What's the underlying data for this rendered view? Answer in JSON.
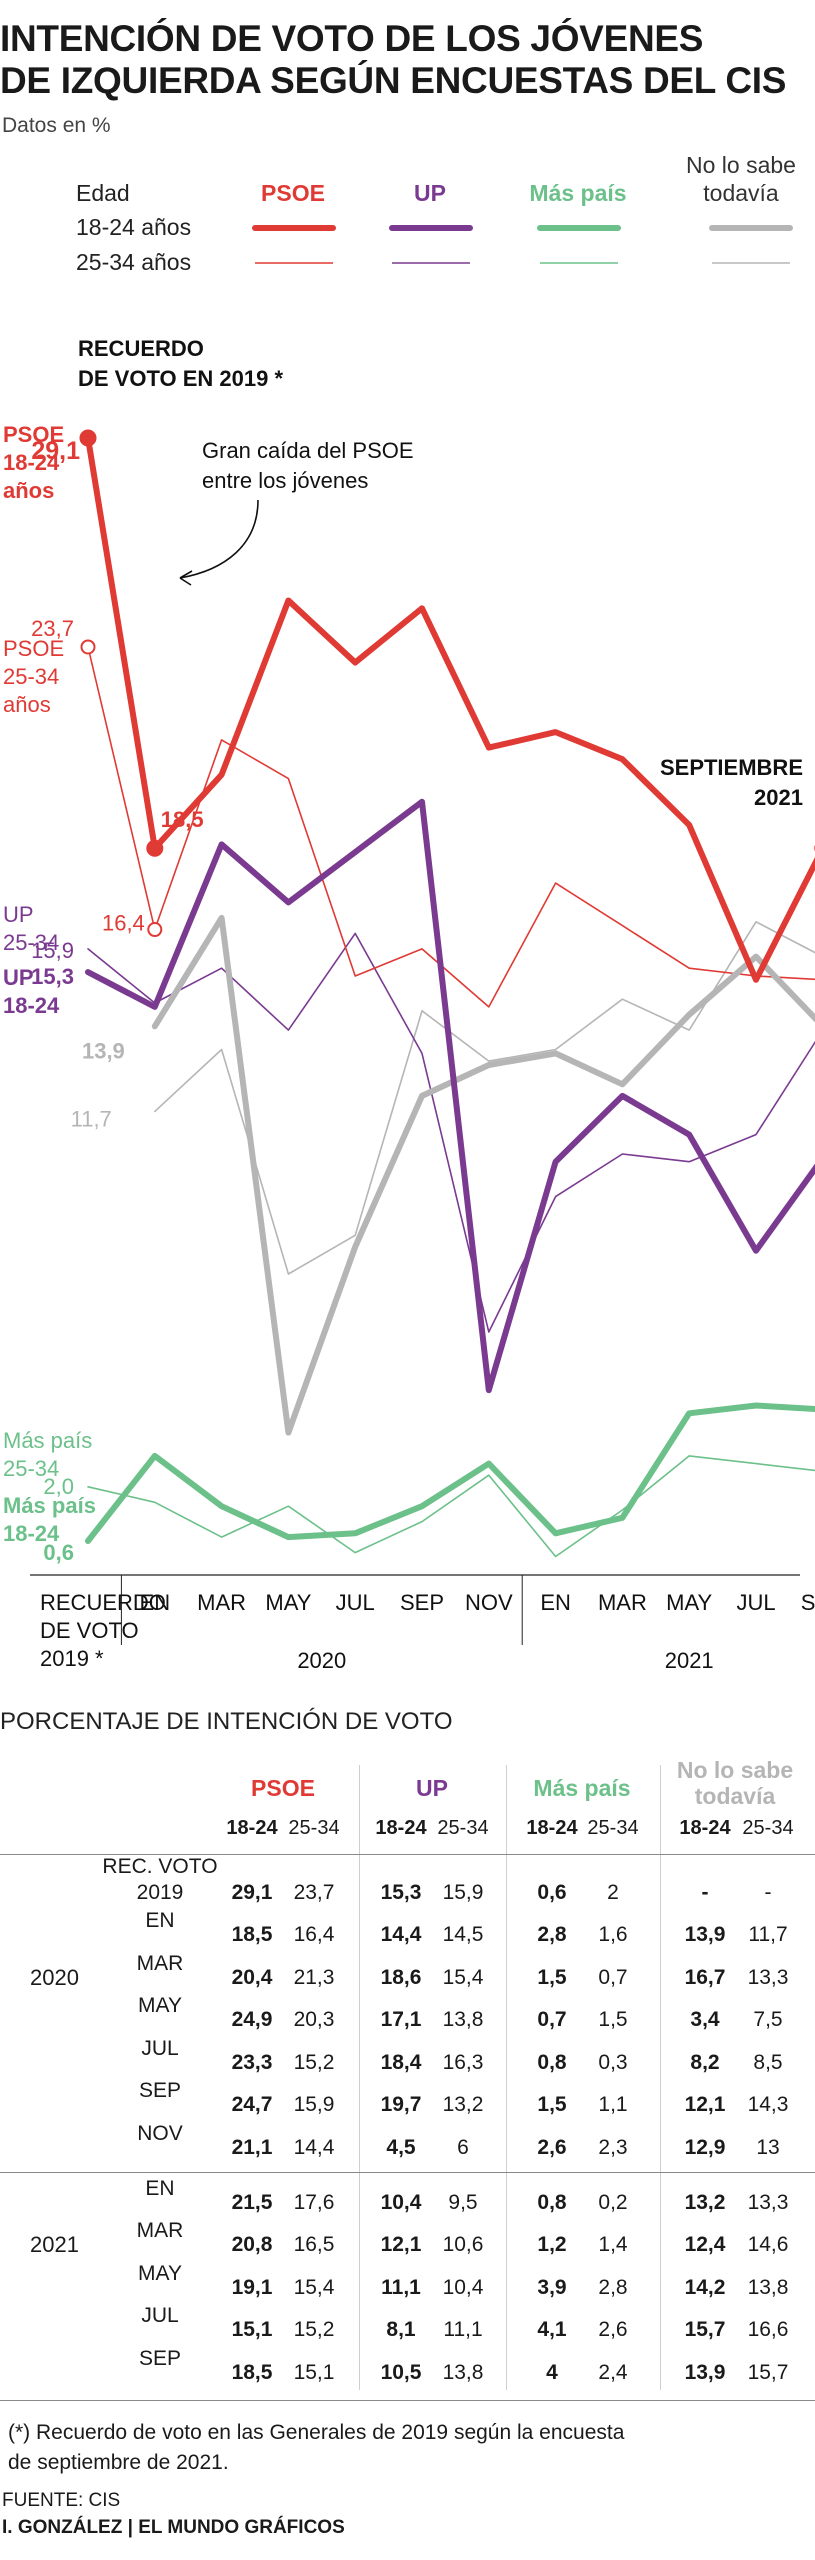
{
  "title_line1": "INTENCIÓN DE VOTO DE LOS JÓVENES",
  "title_line2": "DE IZQUIERDA SEGÚN ENCUESTAS DEL CIS",
  "units": "Datos en %",
  "colors": {
    "psoe": "#e03a34",
    "up": "#7a3a90",
    "maspais": "#6cc08a",
    "nosabe": "#b5b5b5"
  },
  "legend": {
    "age_header": "Edad",
    "row1": "18-24 años",
    "row2": "25-34 años",
    "psoe": "PSOE",
    "up": "UP",
    "maspais": "Más país",
    "nosabe_l1": "No lo sabe",
    "nosabe_l2": "todavía"
  },
  "annotations": {
    "recuerdo_l1": "RECUERDO",
    "recuerdo_l2": "DE VOTO EN 2019 *",
    "caida_l1": "Gran caída del PSOE",
    "caida_l2": "entre los jóvenes",
    "sept_l1": "SEPTIEMBRE",
    "sept_l2": "2021",
    "psoe1824": [
      "PSOE",
      "18-24",
      "años"
    ],
    "psoe2534": [
      "PSOE",
      "25-34",
      "años"
    ],
    "up2534": [
      "UP",
      "25-34"
    ],
    "up1824": [
      "UP",
      "18-24"
    ],
    "mp2534": [
      "Más país",
      "25-34"
    ],
    "mp1824": [
      "Más país",
      "18-24"
    ]
  },
  "chart_data": {
    "type": "line",
    "x": [
      "RECUERDO DE VOTO 2019 *",
      "EN",
      "MAR",
      "MAY",
      "JUL",
      "SEP",
      "NOV",
      "EN",
      "MAR",
      "MAY",
      "JUL",
      "SEP"
    ],
    "x_tick_labels": [
      "EN",
      "MAR",
      "MAY",
      "JUL",
      "SEP",
      "NOV",
      "EN",
      "MAR",
      "MAY",
      "JUL",
      "SEP"
    ],
    "x_first_label": [
      "RECUERDO",
      "DE VOTO",
      "2019 *"
    ],
    "x_years": [
      "2020",
      "2021"
    ],
    "ylim": [
      0,
      30
    ],
    "grid": false,
    "series": [
      {
        "name": "PSOE 18-24",
        "party": "psoe",
        "age": "18-24",
        "values": [
          29.1,
          18.5,
          20.4,
          24.9,
          23.3,
          24.7,
          21.1,
          21.5,
          20.8,
          19.1,
          15.1,
          18.5
        ]
      },
      {
        "name": "PSOE 25-34",
        "party": "psoe",
        "age": "25-34",
        "values": [
          23.7,
          16.4,
          21.3,
          20.3,
          15.2,
          15.9,
          14.4,
          17.6,
          16.5,
          15.4,
          15.2,
          15.1
        ]
      },
      {
        "name": "UP 18-24",
        "party": "up",
        "age": "18-24",
        "values": [
          15.3,
          14.4,
          18.6,
          17.1,
          18.4,
          19.7,
          4.5,
          10.4,
          12.1,
          11.1,
          8.1,
          10.5
        ]
      },
      {
        "name": "UP 25-34",
        "party": "up",
        "age": "25-34",
        "values": [
          15.9,
          14.5,
          15.4,
          13.8,
          16.3,
          13.2,
          6,
          9.5,
          10.6,
          10.4,
          11.1,
          13.8
        ]
      },
      {
        "name": "Más país 18-24",
        "party": "maspais",
        "age": "18-24",
        "values": [
          0.6,
          2.8,
          1.5,
          0.7,
          0.8,
          1.5,
          2.6,
          0.8,
          1.2,
          3.9,
          4.1,
          4.0
        ]
      },
      {
        "name": "Más país 25-34",
        "party": "maspais",
        "age": "25-34",
        "values": [
          2.0,
          1.6,
          0.7,
          1.5,
          0.3,
          1.1,
          2.3,
          0.2,
          1.4,
          2.8,
          2.6,
          2.4
        ]
      },
      {
        "name": "No lo sabe todavía 18-24",
        "party": "nosabe",
        "age": "18-24",
        "values": [
          null,
          13.9,
          16.7,
          3.4,
          8.2,
          12.1,
          12.9,
          13.2,
          12.4,
          14.2,
          15.7,
          13.9
        ]
      },
      {
        "name": "No lo sabe todavía 25-34",
        "party": "nosabe",
        "age": "25-34",
        "values": [
          null,
          11.7,
          13.3,
          7.5,
          8.5,
          14.3,
          13,
          13.3,
          14.6,
          13.8,
          16.6,
          15.7
        ]
      }
    ],
    "value_labels": [
      {
        "series": 0,
        "index": 0,
        "text": "29,1"
      },
      {
        "series": 0,
        "index": 1,
        "text": "18,5"
      },
      {
        "series": 0,
        "index": 11,
        "text": "18,5"
      },
      {
        "series": 1,
        "index": 0,
        "text": "23,7"
      },
      {
        "series": 1,
        "index": 1,
        "text": "16,4"
      },
      {
        "series": 1,
        "index": 11,
        "text": "15,1"
      },
      {
        "series": 2,
        "index": 0,
        "text": "15,3"
      },
      {
        "series": 2,
        "index": 11,
        "text": "10,5"
      },
      {
        "series": 3,
        "index": 0,
        "text": "15,9"
      },
      {
        "series": 3,
        "index": 11,
        "text": "13,8"
      },
      {
        "series": 4,
        "index": 0,
        "text": "0,6"
      },
      {
        "series": 4,
        "index": 11,
        "text": "4,0"
      },
      {
        "series": 5,
        "index": 0,
        "text": "2,0"
      },
      {
        "series": 5,
        "index": 11,
        "text": "2,4"
      },
      {
        "series": 6,
        "index": 1,
        "text": "13,9"
      },
      {
        "series": 6,
        "index": 11,
        "text": "13,9"
      },
      {
        "series": 7,
        "index": 1,
        "text": "11,7"
      },
      {
        "series": 7,
        "index": 11,
        "text": "15,7"
      }
    ]
  },
  "table": {
    "title": "PORCENTAJE DE INTENCIÓN DE VOTO",
    "groups": [
      {
        "name_l1": "PSOE",
        "name_l2": "",
        "color": "#e03a34"
      },
      {
        "name_l1": "UP",
        "name_l2": "",
        "color": "#7a3a90"
      },
      {
        "name_l1": "Más país",
        "name_l2": "",
        "color": "#6cc08a"
      },
      {
        "name_l1": "No lo sabe",
        "name_l2": "todavía",
        "color": "#b5b5b5"
      }
    ],
    "sub_headers": [
      "18-24",
      "25-34"
    ],
    "rows": [
      {
        "year": "",
        "label_l1": "REC. VOTO",
        "label_l2": "2019",
        "values": [
          "29,1",
          "23,7",
          "15,3",
          "15,9",
          "0,6",
          "2",
          "-",
          "-"
        ]
      },
      {
        "year": "2020",
        "label_l1": "EN",
        "label_l2": "",
        "values": [
          "18,5",
          "16,4",
          "14,4",
          "14,5",
          "2,8",
          "1,6",
          "13,9",
          "11,7"
        ]
      },
      {
        "year": "",
        "label_l1": "MAR",
        "label_l2": "",
        "values": [
          "20,4",
          "21,3",
          "18,6",
          "15,4",
          "1,5",
          "0,7",
          "16,7",
          "13,3"
        ]
      },
      {
        "year": "",
        "label_l1": "MAY",
        "label_l2": "",
        "values": [
          "24,9",
          "20,3",
          "17,1",
          "13,8",
          "0,7",
          "1,5",
          "3,4",
          "7,5"
        ]
      },
      {
        "year": "",
        "label_l1": "JUL",
        "label_l2": "",
        "values": [
          "23,3",
          "15,2",
          "18,4",
          "16,3",
          "0,8",
          "0,3",
          "8,2",
          "8,5"
        ]
      },
      {
        "year": "",
        "label_l1": "SEP",
        "label_l2": "",
        "values": [
          "24,7",
          "15,9",
          "19,7",
          "13,2",
          "1,5",
          "1,1",
          "12,1",
          "14,3"
        ]
      },
      {
        "year": "",
        "label_l1": "NOV",
        "label_l2": "",
        "values": [
          "21,1",
          "14,4",
          "4,5",
          "6",
          "2,6",
          "2,3",
          "12,9",
          "13"
        ]
      },
      {
        "year": "2021",
        "label_l1": "EN",
        "label_l2": "",
        "values": [
          "21,5",
          "17,6",
          "10,4",
          "9,5",
          "0,8",
          "0,2",
          "13,2",
          "13,3"
        ]
      },
      {
        "year": "",
        "label_l1": "MAR",
        "label_l2": "",
        "values": [
          "20,8",
          "16,5",
          "12,1",
          "10,6",
          "1,2",
          "1,4",
          "12,4",
          "14,6"
        ]
      },
      {
        "year": "",
        "label_l1": "MAY",
        "label_l2": "",
        "values": [
          "19,1",
          "15,4",
          "11,1",
          "10,4",
          "3,9",
          "2,8",
          "14,2",
          "13,8"
        ]
      },
      {
        "year": "",
        "label_l1": "JUL",
        "label_l2": "",
        "values": [
          "15,1",
          "15,2",
          "8,1",
          "11,1",
          "4,1",
          "2,6",
          "15,7",
          "16,6"
        ]
      },
      {
        "year": "",
        "label_l1": "SEP",
        "label_l2": "",
        "values": [
          "18,5",
          "15,1",
          "10,5",
          "13,8",
          "4",
          "2,4",
          "13,9",
          "15,7"
        ]
      }
    ]
  },
  "footnote_l1": "(*) Recuerdo de voto en las Generales de 2019 según la encuesta",
  "footnote_l2": "de septiembre de 2021.",
  "source": "FUENTE: CIS",
  "credit": "I. GONZÁLEZ | EL MUNDO GRÁFICOS"
}
